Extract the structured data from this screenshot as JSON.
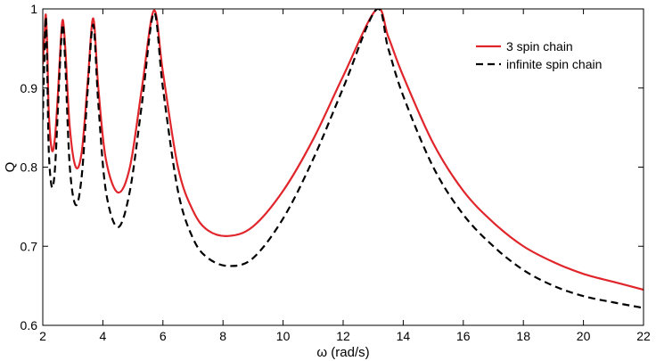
{
  "chart_data": {
    "type": "line",
    "title": "",
    "xlabel": "ω (rad/s)",
    "ylabel": "Q",
    "xlim": [
      2,
      22
    ],
    "ylim": [
      0.6,
      1.0
    ],
    "xticks": [
      2,
      4,
      6,
      8,
      10,
      12,
      14,
      16,
      18,
      20,
      22
    ],
    "yticks": [
      0.6,
      0.7,
      0.8,
      0.9,
      1.0
    ],
    "ytick_labels": [
      "0.6",
      "0.7",
      "0.8",
      "0.9",
      "1"
    ],
    "grid": false,
    "legend_position": "top-right",
    "series": [
      {
        "name": "3 spin chain",
        "color": "#e0252b",
        "dash": "solid",
        "points": [
          [
            2.0,
            0.93
          ],
          [
            2.05,
            0.96
          ],
          [
            2.1,
            0.993
          ],
          [
            2.15,
            0.95
          ],
          [
            2.2,
            0.87
          ],
          [
            2.3,
            0.822
          ],
          [
            2.4,
            0.835
          ],
          [
            2.5,
            0.89
          ],
          [
            2.6,
            0.96
          ],
          [
            2.67,
            0.986
          ],
          [
            2.75,
            0.95
          ],
          [
            2.9,
            0.85
          ],
          [
            3.1,
            0.8
          ],
          [
            3.3,
            0.82
          ],
          [
            3.5,
            0.91
          ],
          [
            3.68,
            0.988
          ],
          [
            3.85,
            0.9
          ],
          [
            4.1,
            0.81
          ],
          [
            4.5,
            0.768
          ],
          [
            4.9,
            0.8
          ],
          [
            5.3,
            0.9
          ],
          [
            5.7,
            0.998
          ],
          [
            6.0,
            0.92
          ],
          [
            6.5,
            0.8
          ],
          [
            7.0,
            0.745
          ],
          [
            7.5,
            0.72
          ],
          [
            8.2,
            0.713
          ],
          [
            9.0,
            0.725
          ],
          [
            10.0,
            0.77
          ],
          [
            11.0,
            0.835
          ],
          [
            12.0,
            0.915
          ],
          [
            13.1,
            0.999
          ],
          [
            13.5,
            0.965
          ],
          [
            14.0,
            0.915
          ],
          [
            15.0,
            0.83
          ],
          [
            16.0,
            0.77
          ],
          [
            17.0,
            0.73
          ],
          [
            18.0,
            0.7
          ],
          [
            19.0,
            0.68
          ],
          [
            20.0,
            0.665
          ],
          [
            21.0,
            0.655
          ],
          [
            22.0,
            0.645
          ]
        ]
      },
      {
        "name": "infinite spin chain",
        "color": "#000000",
        "dash": "dashed",
        "points": [
          [
            2.0,
            0.86
          ],
          [
            2.05,
            0.93
          ],
          [
            2.1,
            0.99
          ],
          [
            2.15,
            0.92
          ],
          [
            2.2,
            0.82
          ],
          [
            2.3,
            0.775
          ],
          [
            2.4,
            0.795
          ],
          [
            2.5,
            0.87
          ],
          [
            2.6,
            0.95
          ],
          [
            2.67,
            0.98
          ],
          [
            2.75,
            0.93
          ],
          [
            2.9,
            0.8
          ],
          [
            3.1,
            0.752
          ],
          [
            3.3,
            0.79
          ],
          [
            3.5,
            0.9
          ],
          [
            3.68,
            0.98
          ],
          [
            3.85,
            0.88
          ],
          [
            4.1,
            0.77
          ],
          [
            4.5,
            0.724
          ],
          [
            4.9,
            0.77
          ],
          [
            5.3,
            0.88
          ],
          [
            5.7,
            0.995
          ],
          [
            6.0,
            0.9
          ],
          [
            6.5,
            0.77
          ],
          [
            7.0,
            0.71
          ],
          [
            7.5,
            0.685
          ],
          [
            8.2,
            0.675
          ],
          [
            9.0,
            0.685
          ],
          [
            10.0,
            0.735
          ],
          [
            11.0,
            0.81
          ],
          [
            12.0,
            0.9
          ],
          [
            13.1,
            0.999
          ],
          [
            13.5,
            0.95
          ],
          [
            14.0,
            0.89
          ],
          [
            15.0,
            0.8
          ],
          [
            16.0,
            0.74
          ],
          [
            17.0,
            0.7
          ],
          [
            18.0,
            0.67
          ],
          [
            19.0,
            0.65
          ],
          [
            20.0,
            0.637
          ],
          [
            21.0,
            0.629
          ],
          [
            22.0,
            0.622
          ]
        ]
      }
    ]
  }
}
